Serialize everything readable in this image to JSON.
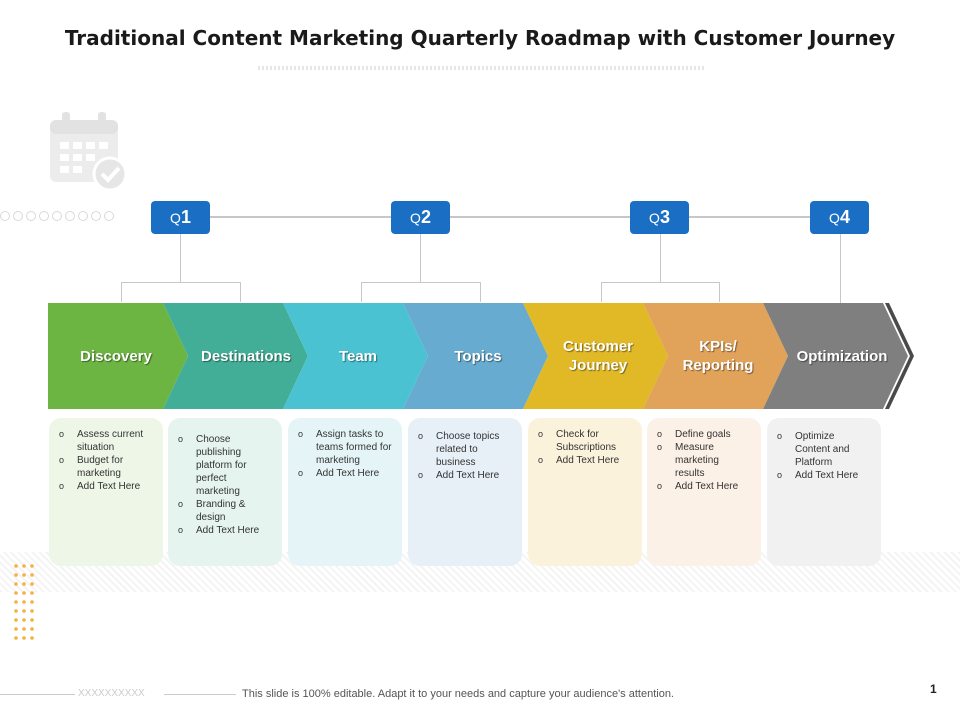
{
  "title": "Traditional Content Marketing Quarterly Roadmap with Customer Journey",
  "quarters": [
    {
      "letter": "Q",
      "number": "1"
    },
    {
      "letter": "Q",
      "number": "2"
    },
    {
      "letter": "Q",
      "number": "3"
    },
    {
      "letter": "Q",
      "number": "4"
    }
  ],
  "stages": [
    {
      "label_lines": [
        "Discovery"
      ],
      "color": "#6db543",
      "card_color": "#eef6e8",
      "bullets": [
        "Assess current situation",
        "Budget for marketing",
        "Add Text Here"
      ]
    },
    {
      "label_lines": [
        "Destinations"
      ],
      "color": "#43ae97",
      "card_color": "#e6f4f0",
      "bullets": [
        "Choose publishing platform for perfect marketing",
        "Branding & design",
        "Add Text Here"
      ]
    },
    {
      "label_lines": [
        "Team"
      ],
      "color": "#4bc2d2",
      "card_color": "#e5f5f7",
      "bullets": [
        "Assign tasks to teams formed for marketing",
        "Add Text Here"
      ]
    },
    {
      "label_lines": [
        "Topics"
      ],
      "color": "#68abd0",
      "card_color": "#e7f0f7",
      "bullets": [
        "Choose topics related to business",
        "Add Text Here"
      ]
    },
    {
      "label_lines": [
        "Customer",
        "Journey"
      ],
      "color": "#e1b826",
      "card_color": "#fbf2dc",
      "bullets": [
        "Check for Subscriptions",
        "Add Text Here"
      ]
    },
    {
      "label_lines": [
        "KPIs/",
        "Reporting"
      ],
      "color": "#e1a25a",
      "card_color": "#fcf1e6",
      "bullets": [
        "Define goals",
        "Measure marketing results",
        "Add Text Here"
      ]
    },
    {
      "label_lines": [
        "Optimization"
      ],
      "color": "#7f7f7f",
      "card_color": "#f1f1f1",
      "bullets": [
        "Optimize Content and Platform",
        "Add Text Here"
      ]
    }
  ],
  "icons": {
    "calendar": "calendar-check-icon"
  },
  "footer": {
    "code": "XXXXXXXXXX",
    "note": "This slide is 100% editable. Adapt it to your needs and capture your audience's attention.",
    "page_number": "1"
  }
}
